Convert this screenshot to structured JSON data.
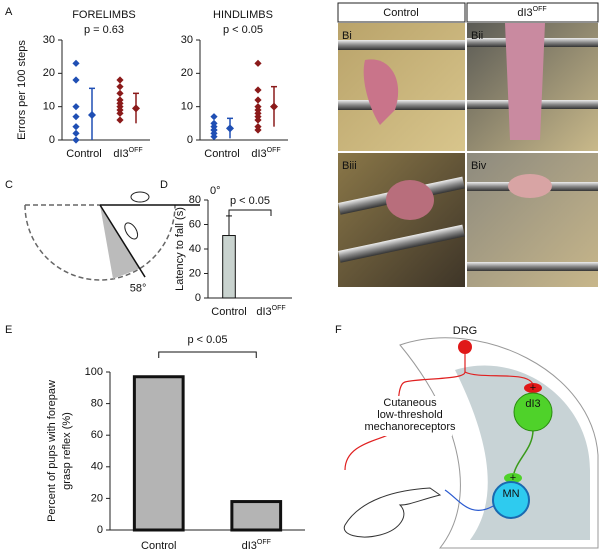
{
  "panel_labels": [
    "A",
    "C",
    "D",
    "E",
    "F"
  ],
  "chart_data": [
    {
      "type": "strip",
      "title": "FORELIMBS",
      "subtitle": "p = 0.63",
      "ylabel": "Errors per 100 steps",
      "categories": [
        "Control",
        {
          "text": "dI3",
          "sup": "OFF"
        }
      ],
      "groups": [
        {
          "color": "#1f4fb4",
          "values": [
            23,
            18,
            10,
            7,
            4,
            2,
            0
          ],
          "mean": 7.5,
          "error": 8
        },
        {
          "color": "#8b1a1a",
          "values": [
            18,
            16,
            14,
            12,
            11,
            10,
            9,
            8,
            6
          ],
          "mean": 9.5,
          "error": 4.5
        }
      ],
      "ylim": [
        0,
        30
      ],
      "yticks": [
        0,
        10,
        20,
        30
      ]
    },
    {
      "type": "strip",
      "title": "HINDLIMBS",
      "subtitle": "p < 0.05",
      "categories": [
        "Control",
        {
          "text": "dI3",
          "sup": "OFF"
        }
      ],
      "groups": [
        {
          "color": "#1f4fb4",
          "values": [
            7,
            5,
            4,
            3,
            3,
            2,
            1
          ],
          "mean": 3.5,
          "error": 3
        },
        {
          "color": "#8b1a1a",
          "values": [
            23,
            15,
            12,
            10,
            9,
            8,
            7,
            6,
            4,
            3
          ],
          "mean": 10,
          "error": 6
        }
      ],
      "ylim": [
        0,
        30
      ],
      "yticks": [
        0,
        10,
        20,
        30
      ]
    },
    {
      "type": "bar",
      "ylabel": "Latency to fall (s)",
      "annotation": "p < 0.05",
      "categories": [
        "Control",
        {
          "text": "dI3",
          "sup": "OFF"
        }
      ],
      "values": [
        51,
        0
      ],
      "errors": [
        16,
        null
      ],
      "color": "#c9d3cf",
      "ylim": [
        0,
        80
      ],
      "yticks": [
        0,
        20,
        40,
        60,
        80
      ]
    },
    {
      "type": "bar",
      "ylabel": [
        "Percent of pups with forepaw",
        "grasp reflex (%)"
      ],
      "annotation": "p < 0.05",
      "categories": [
        "Control",
        {
          "text": "dI3",
          "sup": "OFF"
        }
      ],
      "values": [
        97,
        18
      ],
      "errors": [
        null,
        null
      ],
      "color": "#b4b4b4",
      "ylim": [
        0,
        100
      ],
      "yticks": [
        0,
        20,
        40,
        60,
        80,
        100
      ]
    }
  ],
  "photos": {
    "columns": [
      "Control",
      {
        "text": "dI3",
        "sup": "OFF"
      }
    ],
    "labels": [
      "Bi",
      "Bii",
      "Biii",
      "Biv"
    ]
  },
  "diagram_c": {
    "angles": [
      {
        "value": 0,
        "label": "0°"
      },
      {
        "value": 58,
        "label": "58°"
      }
    ]
  },
  "diagram_f": {
    "drg": "DRG",
    "receptor": [
      "Cutaneous",
      "low-threshold",
      "mechanoreceptors"
    ],
    "interneuron": "dI3",
    "motor": "MN",
    "excitatory": [
      "+",
      "+"
    ]
  }
}
